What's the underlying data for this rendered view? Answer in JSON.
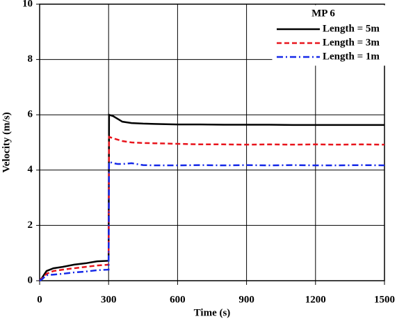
{
  "chart_data": {
    "type": "line",
    "xlabel": "Time (s)",
    "ylabel": "Velocity (m/s)",
    "legend_title": "MP 6",
    "legend": "upper right",
    "x": [
      0,
      10,
      30,
      60,
      100,
      150,
      200,
      250,
      300,
      302,
      320,
      340,
      360,
      400,
      450,
      500,
      600,
      700,
      800,
      900,
      1000,
      1100,
      1200,
      1300,
      1400,
      1500
    ],
    "series": [
      {
        "name": "Length = 5m",
        "color": "#000000",
        "linestyle": "solid",
        "values": [
          0,
          0.1,
          0.35,
          0.45,
          0.5,
          0.58,
          0.63,
          0.7,
          0.72,
          6.0,
          5.95,
          5.85,
          5.75,
          5.7,
          5.68,
          5.67,
          5.65,
          5.65,
          5.64,
          5.64,
          5.64,
          5.63,
          5.63,
          5.63,
          5.63,
          5.63
        ]
      },
      {
        "name": "Length = 3m",
        "color": "#e8141c",
        "linestyle": "dashed",
        "values": [
          0,
          0.08,
          0.25,
          0.35,
          0.4,
          0.45,
          0.5,
          0.55,
          0.58,
          5.2,
          5.15,
          5.1,
          5.05,
          5.0,
          4.98,
          4.97,
          4.95,
          4.93,
          4.93,
          4.92,
          4.93,
          4.92,
          4.93,
          4.92,
          4.93,
          4.92
        ]
      },
      {
        "name": "Length = 1m",
        "color": "#1428e8",
        "linestyle": "dashdot",
        "values": [
          0,
          0.05,
          0.2,
          0.22,
          0.25,
          0.3,
          0.33,
          0.38,
          0.4,
          4.3,
          4.25,
          4.22,
          4.22,
          4.25,
          4.18,
          4.17,
          4.17,
          4.18,
          4.17,
          4.18,
          4.17,
          4.18,
          4.17,
          4.17,
          4.18,
          4.17
        ]
      }
    ],
    "xlim": [
      0,
      1500
    ],
    "ylim": [
      0,
      10
    ],
    "xticks": [
      0,
      300,
      600,
      900,
      1200,
      1500
    ],
    "yticks": [
      0,
      2,
      4,
      6,
      8,
      10
    ],
    "grid": true
  }
}
